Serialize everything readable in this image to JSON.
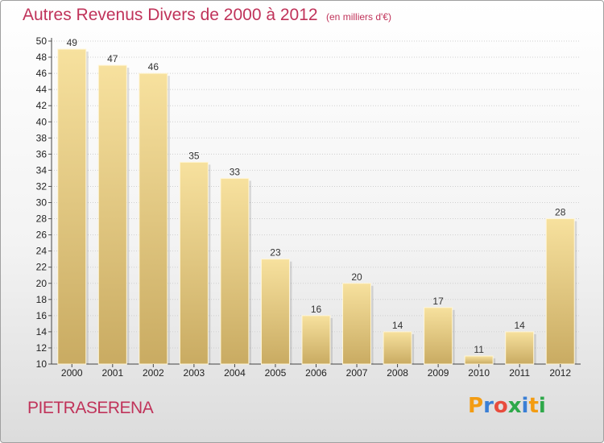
{
  "header": {
    "title": "Autres Revenus Divers de 2000 à 2012",
    "unit": "(en milliers d'€)"
  },
  "footer": {
    "commune": "PIETRASERENA",
    "brand_letters": [
      "P",
      "r",
      "o",
      "x",
      "i",
      "t",
      "i"
    ],
    "brand_colors": [
      "#f39c12",
      "#3a7fd5",
      "#e84c3d",
      "#2ea84a",
      "#3a7fd5",
      "#f39c12",
      "#2ea84a"
    ]
  },
  "colors": {
    "bar_light": "#f7e19e",
    "bar_dark": "#c9ab62",
    "title": "#c0335a"
  },
  "chart_data": {
    "type": "bar",
    "title": "Autres Revenus Divers de 2000 à 2012",
    "xlabel": "",
    "ylabel": "",
    "categories": [
      "2000",
      "2001",
      "2002",
      "2003",
      "2004",
      "2005",
      "2006",
      "2007",
      "2008",
      "2009",
      "2010",
      "2011",
      "2012"
    ],
    "values": [
      49,
      47,
      46,
      35,
      33,
      23,
      16,
      20,
      14,
      17,
      11,
      14,
      28
    ],
    "ylim": [
      10,
      50
    ],
    "yticks": [
      10,
      12,
      14,
      16,
      18,
      20,
      22,
      24,
      26,
      28,
      30,
      32,
      34,
      36,
      38,
      40,
      42,
      44,
      46,
      48,
      50
    ],
    "grid": true,
    "data_labels": true
  }
}
